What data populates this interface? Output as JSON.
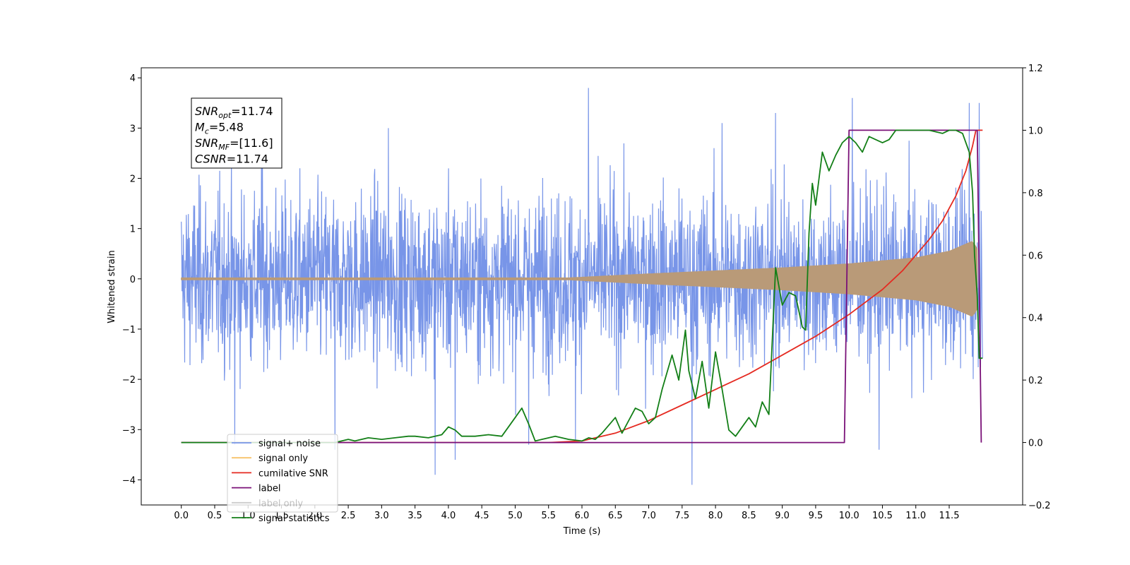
{
  "chart_data": {
    "type": "line",
    "xlabel": "Time (s)",
    "ylabel": "Whitened strain",
    "xlim": [
      -0.6,
      12.6
    ],
    "ylim": [
      -4.5,
      4.2
    ],
    "y2lim": [
      -0.2,
      1.2
    ],
    "x_ticks": [
      0,
      0.5,
      1,
      1.5,
      2,
      2.5,
      3,
      3.5,
      4,
      4.5,
      5,
      5.5,
      6,
      6.5,
      7,
      7.5,
      8,
      8.5,
      9,
      9.5,
      10,
      10.5,
      11,
      11.5
    ],
    "x_tick_labels": [
      "0.0",
      "0.5",
      "1.0",
      "1.5",
      "2.0",
      "2.5",
      "3.0",
      "3.5",
      "4.0",
      "4.5",
      "5.0",
      "5.5",
      "6.0",
      "6.5",
      "7.0",
      "7.5",
      "8.0",
      "8.5",
      "9.0",
      "9.5",
      "10.0",
      "10.5",
      "11.0",
      "11.5"
    ],
    "y_ticks": [
      -4,
      -3,
      -2,
      -1,
      0,
      1,
      2,
      3,
      4
    ],
    "y_tick_labels": [
      "−4",
      "−3",
      "−2",
      "−1",
      "0",
      "1",
      "2",
      "3",
      "4"
    ],
    "y2_ticks": [
      -0.2,
      0,
      0.2,
      0.4,
      0.6,
      0.8,
      1.0,
      1.2
    ],
    "y2_tick_labels": [
      "−0.2",
      "0.0",
      "0.2",
      "0.4",
      "0.6",
      "0.8",
      "1.0",
      "1.2"
    ],
    "grid": false,
    "legend_placement": "lower-left",
    "annotation_lines": [
      {
        "symbol": "SNR",
        "sub": "opt",
        "value": "=11.74"
      },
      {
        "symbol": "M",
        "sub": "c",
        "value": "=5.48"
      },
      {
        "symbol": "SNR",
        "sub": "MF",
        "value": "=[11.6]"
      },
      {
        "symbol": "CSNR",
        "sub": "",
        "value": "=11.74"
      }
    ],
    "series": [
      {
        "name": "signal+ noise",
        "axis": "left",
        "color": "#7895e8",
        "kind": "noise",
        "t_start": 0.0,
        "t_end": 12.0,
        "noise_std": 0.9,
        "spike_values": [
          [
            0.8,
            -3.3
          ],
          [
            1.2,
            2.6
          ],
          [
            2.3,
            -3.4
          ],
          [
            3.1,
            3.0
          ],
          [
            3.8,
            -3.9
          ],
          [
            4.1,
            -3.6
          ],
          [
            5.2,
            -3.3
          ],
          [
            5.9,
            -3.2
          ],
          [
            6.1,
            3.8
          ],
          [
            7.65,
            -4.1
          ],
          [
            8.1,
            3.1
          ],
          [
            8.9,
            3.3
          ],
          [
            10.05,
            3.6
          ],
          [
            10.45,
            -3.4
          ],
          [
            11.8,
            3.5
          ],
          [
            11.95,
            3.5
          ]
        ]
      },
      {
        "name": "signal only",
        "axis": "left",
        "color": "#f7c26a",
        "kind": "chirp",
        "t_start": 0.0,
        "t_end": 11.92,
        "envelope": [
          [
            0,
            0.02
          ],
          [
            5.8,
            0.02
          ],
          [
            7,
            0.1
          ],
          [
            8,
            0.16
          ],
          [
            9,
            0.22
          ],
          [
            10,
            0.3
          ],
          [
            11,
            0.42
          ],
          [
            11.5,
            0.55
          ],
          [
            11.85,
            0.75
          ],
          [
            11.92,
            0.6
          ]
        ],
        "overlap_color": "#b99a78"
      },
      {
        "name": "cumilative SNR",
        "axis": "right",
        "color": "#e52a21",
        "x": [
          0,
          5.5,
          6.0,
          6.5,
          7.0,
          7.5,
          8.0,
          8.5,
          9.0,
          9.5,
          10.0,
          10.5,
          10.8,
          11.0,
          11.2,
          11.4,
          11.6,
          11.75,
          11.85,
          11.9,
          11.92,
          12.0
        ],
        "y": [
          0,
          0,
          0.005,
          0.03,
          0.07,
          0.12,
          0.17,
          0.22,
          0.28,
          0.34,
          0.41,
          0.49,
          0.55,
          0.6,
          0.65,
          0.71,
          0.79,
          0.87,
          0.95,
          1.0,
          1.0,
          1.0
        ]
      },
      {
        "name": "label",
        "axis": "right",
        "color": "#7a1178",
        "x": [
          0,
          9.93,
          10.0,
          11.9,
          11.92,
          11.98,
          11.98
        ],
        "y": [
          0,
          0,
          1,
          1,
          1,
          0,
          0
        ]
      },
      {
        "name": "label only",
        "axis": "right",
        "color": "#cccccc",
        "hidden": true,
        "x": [],
        "y": []
      },
      {
        "name": "signal statistics",
        "axis": "right",
        "color": "#137f17",
        "x": [
          0,
          2.3,
          2.5,
          2.6,
          2.8,
          3.0,
          3.2,
          3.4,
          3.5,
          3.7,
          3.9,
          4.0,
          4.1,
          4.2,
          4.4,
          4.6,
          4.8,
          5.0,
          5.1,
          5.2,
          5.3,
          5.4,
          5.6,
          5.8,
          6.0,
          6.1,
          6.2,
          6.3,
          6.5,
          6.6,
          6.8,
          6.9,
          7.0,
          7.1,
          7.2,
          7.35,
          7.45,
          7.55,
          7.6,
          7.7,
          7.8,
          7.9,
          8.0,
          8.1,
          8.2,
          8.3,
          8.5,
          8.6,
          8.7,
          8.8,
          8.9,
          9.0,
          9.1,
          9.2,
          9.3,
          9.35,
          9.4,
          9.45,
          9.5,
          9.6,
          9.7,
          9.8,
          9.9,
          10.0,
          10.1,
          10.2,
          10.3,
          10.4,
          10.5,
          10.6,
          10.7,
          10.8,
          11.0,
          11.2,
          11.4,
          11.5,
          11.6,
          11.7,
          11.8,
          11.85,
          11.88,
          11.92,
          11.95,
          12.0
        ],
        "y": [
          0,
          0,
          0.01,
          0.005,
          0.015,
          0.01,
          0.015,
          0.02,
          0.02,
          0.015,
          0.025,
          0.05,
          0.04,
          0.02,
          0.02,
          0.025,
          0.02,
          0.08,
          0.11,
          0.06,
          0.005,
          0.01,
          0.02,
          0.01,
          0.005,
          0.015,
          0.01,
          0.03,
          0.08,
          0.03,
          0.11,
          0.1,
          0.06,
          0.08,
          0.17,
          0.28,
          0.2,
          0.36,
          0.23,
          0.14,
          0.26,
          0.11,
          0.29,
          0.17,
          0.04,
          0.02,
          0.08,
          0.05,
          0.13,
          0.09,
          0.56,
          0.44,
          0.48,
          0.47,
          0.37,
          0.36,
          0.67,
          0.83,
          0.76,
          0.93,
          0.87,
          0.92,
          0.96,
          0.98,
          0.96,
          0.93,
          0.98,
          0.97,
          0.96,
          0.97,
          1.0,
          1.0,
          1.0,
          1.0,
          0.99,
          1.0,
          1.0,
          0.99,
          0.93,
          0.8,
          0.6,
          0.47,
          0.27,
          0.27
        ]
      }
    ]
  }
}
